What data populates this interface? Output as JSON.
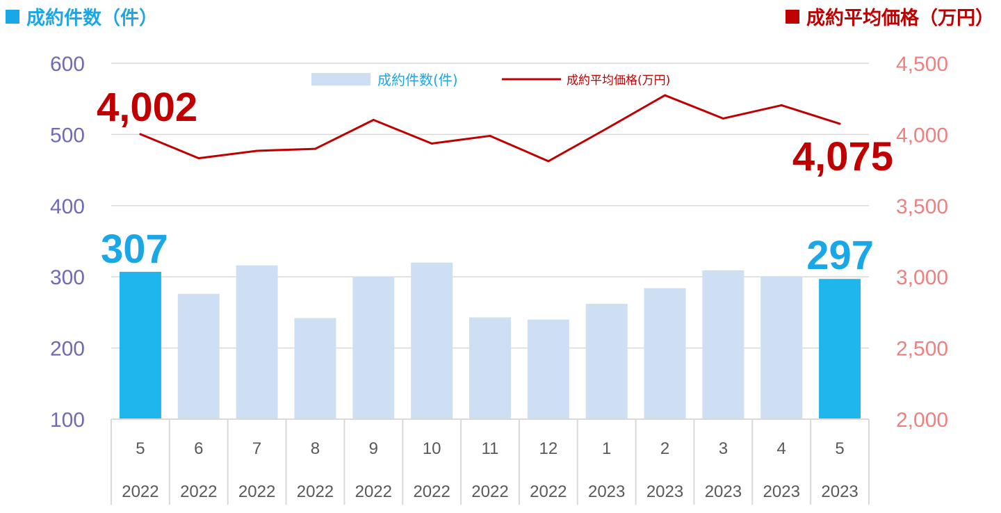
{
  "header": {
    "left_title": "成約件数（件）",
    "right_title": "成約平均価格（万円）"
  },
  "colors": {
    "bar_highlight": "#1fb6ee",
    "bar_normal": "#cfdff3",
    "line": "#c00000",
    "left_axis_text": "#6e6ab8",
    "right_axis_text": "#ee8080",
    "grid": "#d9d9d9",
    "big_count": "#1aa7e8",
    "big_price": "#c00000"
  },
  "chart_data": {
    "type": "bar",
    "categories": [
      {
        "month": "5",
        "year": "2022"
      },
      {
        "month": "6",
        "year": "2022"
      },
      {
        "month": "7",
        "year": "2022"
      },
      {
        "month": "8",
        "year": "2022"
      },
      {
        "month": "9",
        "year": "2022"
      },
      {
        "month": "10",
        "year": "2022"
      },
      {
        "month": "11",
        "year": "2022"
      },
      {
        "month": "12",
        "year": "2022"
      },
      {
        "month": "1",
        "year": "2023"
      },
      {
        "month": "2",
        "year": "2023"
      },
      {
        "month": "3",
        "year": "2023"
      },
      {
        "month": "4",
        "year": "2023"
      },
      {
        "month": "5",
        "year": "2023"
      }
    ],
    "series": [
      {
        "name": "成約件数(件)",
        "type": "bar",
        "axis": "left",
        "values": [
          307,
          276,
          316,
          242,
          300,
          320,
          243,
          240,
          262,
          284,
          309,
          301,
          297
        ],
        "highlight": [
          0,
          12
        ]
      },
      {
        "name": "成約平均価格(万円)",
        "type": "line",
        "axis": "right",
        "values": [
          4002,
          3833,
          3885,
          3899,
          4102,
          3936,
          3990,
          3812,
          4041,
          4275,
          4112,
          4205,
          4075
        ]
      }
    ],
    "left_axis": {
      "ylim": [
        100,
        600
      ],
      "ticks": [
        "100",
        "200",
        "300",
        "400",
        "500",
        "600"
      ]
    },
    "right_axis": {
      "ylim": [
        2000,
        4500
      ],
      "ticks": [
        "2,000",
        "2,500",
        "3,000",
        "3,500",
        "4,000",
        "4,500"
      ]
    },
    "grid": true,
    "legend_position": "top-center",
    "annotations": {
      "first_count": "307",
      "last_count": "297",
      "first_price": "4,002",
      "last_price": "4,075"
    }
  }
}
